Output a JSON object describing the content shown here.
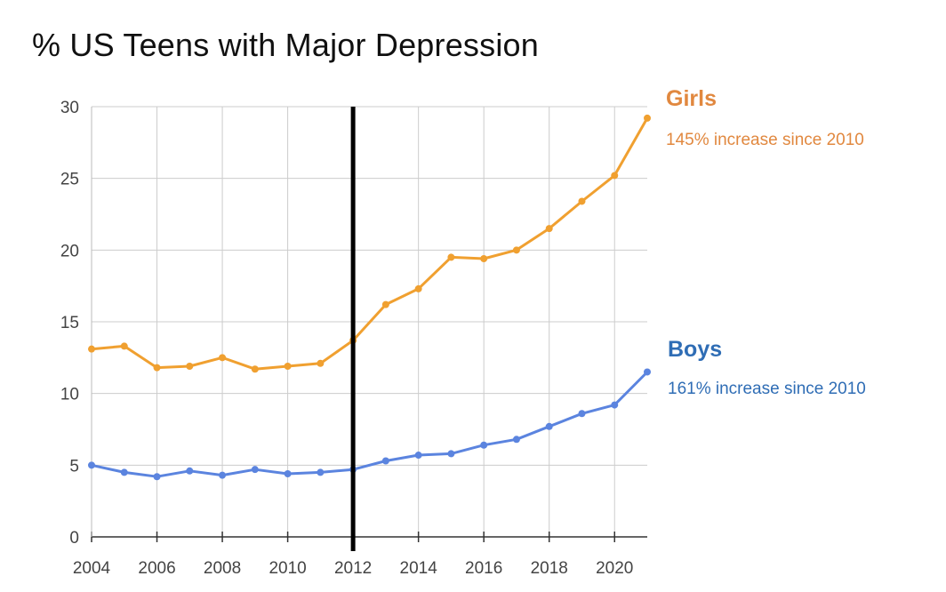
{
  "colors": {
    "girls": "#F0A030",
    "boys": "#5B84DF",
    "marker_line": "#000000",
    "grid": "#CCCCCC"
  },
  "chart_data": {
    "type": "line",
    "title": "% US Teens with Major Depression",
    "xlabel": "",
    "ylabel": "",
    "x": [
      2004,
      2005,
      2006,
      2007,
      2008,
      2009,
      2010,
      2011,
      2012,
      2013,
      2014,
      2015,
      2016,
      2017,
      2018,
      2019,
      2020,
      2021
    ],
    "xlim": [
      2004,
      2021
    ],
    "ylim": [
      0,
      30
    ],
    "x_tick_labels": [
      "2004",
      "2006",
      "2008",
      "2010",
      "2012",
      "2014",
      "2016",
      "2018",
      "2020"
    ],
    "y_tick_labels": [
      "0",
      "5",
      "10",
      "15",
      "20",
      "25",
      "30"
    ],
    "grid": true,
    "vertical_marker_x": 2012,
    "series": [
      {
        "name": "Girls",
        "annotation": "145% increase since 2010",
        "values": [
          13.1,
          13.3,
          11.8,
          11.9,
          12.5,
          11.7,
          11.9,
          12.1,
          13.7,
          16.2,
          17.3,
          19.5,
          19.4,
          20.0,
          21.5,
          23.4,
          25.2,
          29.2
        ]
      },
      {
        "name": "Boys",
        "annotation": "161% increase since 2010",
        "values": [
          5.0,
          4.5,
          4.2,
          4.6,
          4.3,
          4.7,
          4.4,
          4.5,
          4.7,
          5.3,
          5.7,
          5.8,
          6.4,
          6.8,
          7.7,
          8.6,
          9.2,
          11.5
        ]
      }
    ]
  }
}
